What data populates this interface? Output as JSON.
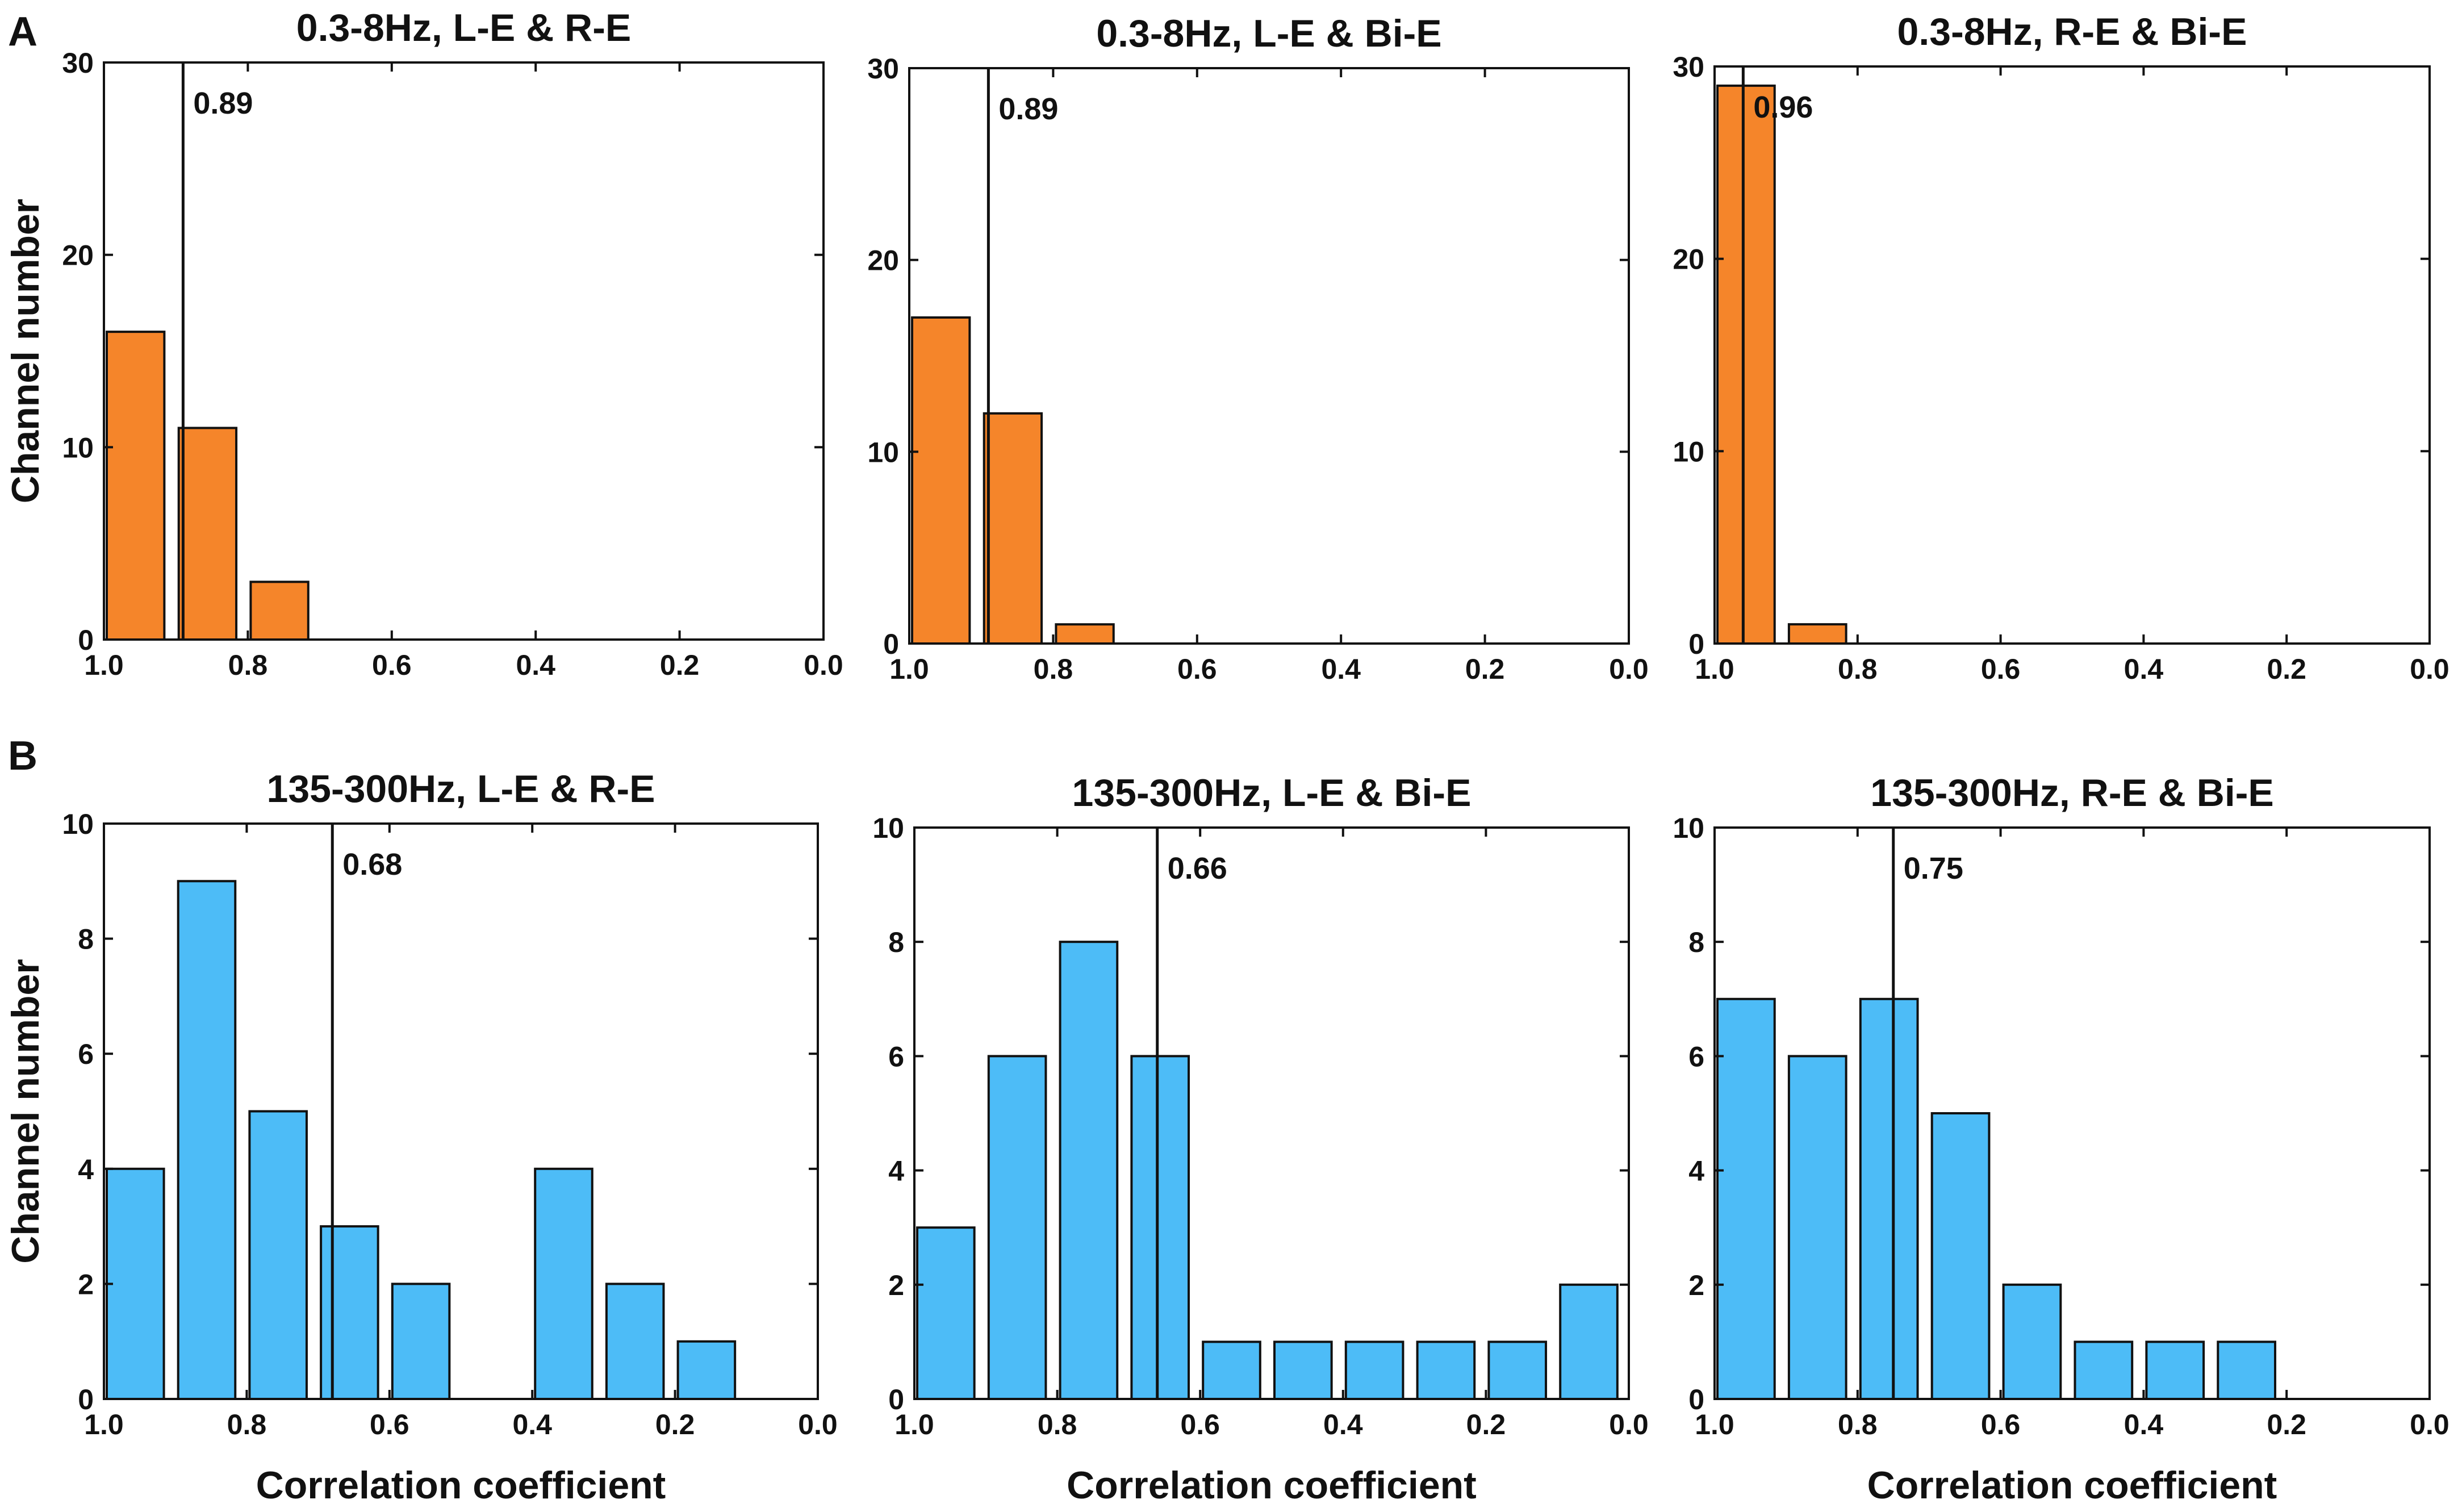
{
  "panel_labels": [
    "A",
    "B"
  ],
  "colors": {
    "panel_a_bar": "#F5852A",
    "panel_b_bar": "#4DBCF7",
    "axis": "#111111"
  },
  "chart_data": [
    {
      "type": "bar",
      "panel": "A",
      "title": "0.3-8Hz, L-E & R-E",
      "ylabel": "Channel number",
      "xlabel": "",
      "xlim": [
        1.0,
        0.0
      ],
      "ylim": [
        0,
        30
      ],
      "xticks": [
        "1.0",
        "0.8",
        "0.6",
        "0.4",
        "0.2",
        "0.0"
      ],
      "yticks": [
        "0",
        "10",
        "20",
        "30"
      ],
      "bins": [
        [
          1.0,
          0.9
        ],
        [
          0.9,
          0.8
        ],
        [
          0.8,
          0.7
        ]
      ],
      "values": [
        16,
        11,
        3
      ],
      "mean_line": 0.89,
      "mean_label": "0.89"
    },
    {
      "type": "bar",
      "panel": "A",
      "title": "0.3-8Hz, L-E & Bi-E",
      "ylabel": "",
      "xlabel": "",
      "xlim": [
        1.0,
        0.0
      ],
      "ylim": [
        0,
        30
      ],
      "xticks": [
        "1.0",
        "0.8",
        "0.6",
        "0.4",
        "0.2",
        "0.0"
      ],
      "yticks": [
        "0",
        "10",
        "20",
        "30"
      ],
      "bins": [
        [
          1.0,
          0.9
        ],
        [
          0.9,
          0.8
        ],
        [
          0.8,
          0.7
        ]
      ],
      "values": [
        17,
        12,
        1
      ],
      "mean_line": 0.89,
      "mean_label": "0.89"
    },
    {
      "type": "bar",
      "panel": "A",
      "title": "0.3-8Hz, R-E & Bi-E",
      "ylabel": "",
      "xlabel": "",
      "xlim": [
        1.0,
        0.0
      ],
      "ylim": [
        0,
        30
      ],
      "xticks": [
        "1.0",
        "0.8",
        "0.6",
        "0.4",
        "0.2",
        "0.0"
      ],
      "yticks": [
        "0",
        "10",
        "20",
        "30"
      ],
      "bins": [
        [
          1.0,
          0.9
        ],
        [
          0.9,
          0.8
        ]
      ],
      "values": [
        29,
        1
      ],
      "mean_line": 0.96,
      "mean_label": "0.96"
    },
    {
      "type": "bar",
      "panel": "B",
      "title": "135-300Hz, L-E & R-E",
      "ylabel": "Channel number",
      "xlabel": "Correlation coefficient",
      "xlim": [
        1.0,
        0.0
      ],
      "ylim": [
        0,
        10
      ],
      "xticks": [
        "1.0",
        "0.8",
        "0.6",
        "0.4",
        "0.2",
        "0.0"
      ],
      "yticks": [
        "0",
        "2",
        "4",
        "6",
        "8",
        "10"
      ],
      "bins": [
        [
          1.0,
          0.9
        ],
        [
          0.9,
          0.8
        ],
        [
          0.8,
          0.7
        ],
        [
          0.7,
          0.6
        ],
        [
          0.6,
          0.5
        ],
        [
          0.4,
          0.3
        ],
        [
          0.3,
          0.2
        ],
        [
          0.2,
          0.1
        ]
      ],
      "values": [
        4,
        9,
        5,
        3,
        2,
        4,
        2,
        1
      ],
      "mean_line": 0.68,
      "mean_label": "0.68"
    },
    {
      "type": "bar",
      "panel": "B",
      "title": "135-300Hz, L-E & Bi-E",
      "ylabel": "",
      "xlabel": "Correlation coefficient",
      "xlim": [
        1.0,
        0.0
      ],
      "ylim": [
        0,
        10
      ],
      "xticks": [
        "1.0",
        "0.8",
        "0.6",
        "0.4",
        "0.2",
        "0.0"
      ],
      "yticks": [
        "0",
        "2",
        "4",
        "6",
        "8",
        "10"
      ],
      "bins": [
        [
          1.0,
          0.9
        ],
        [
          0.9,
          0.8
        ],
        [
          0.8,
          0.7
        ],
        [
          0.7,
          0.6
        ],
        [
          0.6,
          0.5
        ],
        [
          0.5,
          0.4
        ],
        [
          0.4,
          0.3
        ],
        [
          0.3,
          0.2
        ],
        [
          0.2,
          0.1
        ],
        [
          0.1,
          0.0
        ]
      ],
      "values": [
        3,
        6,
        8,
        6,
        1,
        1,
        1,
        1,
        1,
        2
      ],
      "mean_line": 0.66,
      "mean_label": "0.66"
    },
    {
      "type": "bar",
      "panel": "B",
      "title": "135-300Hz, R-E & Bi-E",
      "ylabel": "",
      "xlabel": "Correlation coefficient",
      "xlim": [
        1.0,
        0.0
      ],
      "ylim": [
        0,
        10
      ],
      "xticks": [
        "1.0",
        "0.8",
        "0.6",
        "0.4",
        "0.2",
        "0.0"
      ],
      "yticks": [
        "0",
        "2",
        "4",
        "6",
        "8",
        "10"
      ],
      "bins": [
        [
          1.0,
          0.9
        ],
        [
          0.9,
          0.8
        ],
        [
          0.8,
          0.7
        ],
        [
          0.7,
          0.6
        ],
        [
          0.6,
          0.5
        ],
        [
          0.5,
          0.4
        ],
        [
          0.4,
          0.3
        ],
        [
          0.3,
          0.2
        ]
      ],
      "values": [
        7,
        6,
        7,
        5,
        2,
        1,
        1,
        1
      ],
      "mean_line": 0.75,
      "mean_label": "0.75"
    }
  ]
}
